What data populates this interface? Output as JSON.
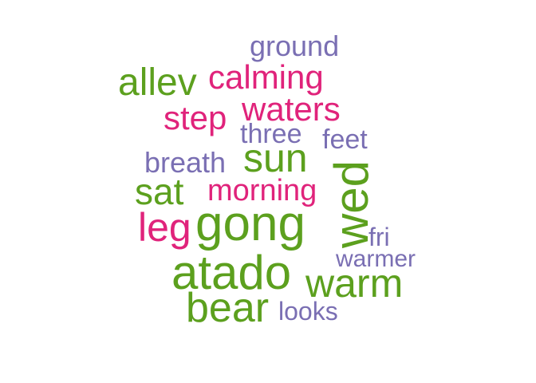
{
  "colors": {
    "background": "#ffffff",
    "green": "#5ca01e",
    "pink": "#e0237b",
    "purple": "#7a6fb3"
  },
  "words": [
    {
      "id": "ground",
      "text": "ground",
      "color": "#7a6fb3"
    },
    {
      "id": "allev",
      "text": "allev",
      "color": "#5ca01e"
    },
    {
      "id": "calming",
      "text": "calming",
      "color": "#e0237b"
    },
    {
      "id": "step",
      "text": "step",
      "color": "#e0237b"
    },
    {
      "id": "waters",
      "text": "waters",
      "color": "#e0237b"
    },
    {
      "id": "three",
      "text": "three",
      "color": "#7a6fb3"
    },
    {
      "id": "feet",
      "text": "feet",
      "color": "#7a6fb3"
    },
    {
      "id": "sun",
      "text": "sun",
      "color": "#5ca01e"
    },
    {
      "id": "breath",
      "text": "breath",
      "color": "#7a6fb3"
    },
    {
      "id": "wed",
      "text": "wed",
      "color": "#5ca01e"
    },
    {
      "id": "sat",
      "text": "sat",
      "color": "#5ca01e"
    },
    {
      "id": "morning",
      "text": "morning",
      "color": "#e0237b"
    },
    {
      "id": "leg",
      "text": "leg",
      "color": "#e0237b"
    },
    {
      "id": "gong",
      "text": "gong",
      "color": "#5ca01e"
    },
    {
      "id": "fri",
      "text": "fri",
      "color": "#7a6fb3"
    },
    {
      "id": "warmer",
      "text": "warmer",
      "color": "#7a6fb3"
    },
    {
      "id": "atado",
      "text": "atado",
      "color": "#5ca01e"
    },
    {
      "id": "warm",
      "text": "warm",
      "color": "#5ca01e"
    },
    {
      "id": "bear",
      "text": "bear",
      "color": "#5ca01e"
    },
    {
      "id": "looks",
      "text": "looks",
      "color": "#7a6fb3"
    }
  ]
}
